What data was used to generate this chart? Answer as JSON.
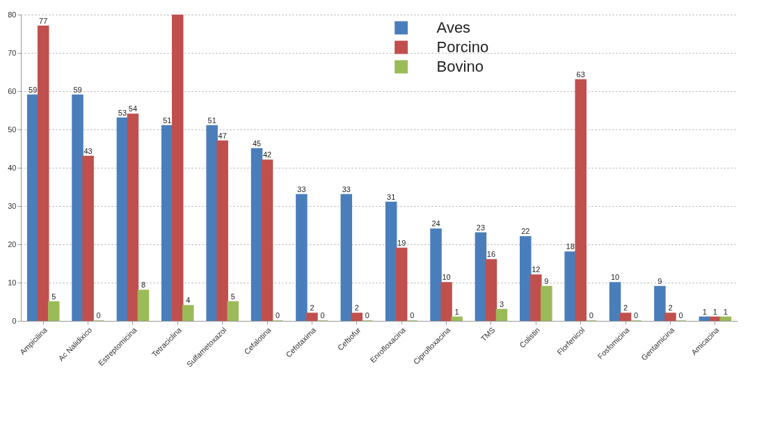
{
  "chart_data": {
    "type": "bar",
    "categories": [
      "Ampicilina",
      "Ac Nalidixico",
      "Estreptomicina",
      "Tetraciclina",
      "Sulfametoxazol",
      "Cefalotina",
      "Cefotaxima",
      "Ceftiofur",
      "Enrofloxacina",
      "Ciprofloxacina",
      "TMS",
      "Colistin",
      "Florfenicol",
      "Fosfomicina",
      "Gentamicina",
      "Amicacina"
    ],
    "series": [
      {
        "name": "Aves",
        "color": "#4a7ebb",
        "values": [
          59,
          59,
          53,
          51,
          51,
          45,
          33,
          33,
          31,
          24,
          23,
          22,
          18,
          10,
          9,
          1
        ],
        "value_labels": [
          "59",
          "59",
          "53",
          "51",
          "51",
          "45",
          "33",
          "33",
          "31",
          "24",
          "23",
          "22",
          "18",
          "10",
          "9",
          "1"
        ]
      },
      {
        "name": "Porcino",
        "color": "#c0504d",
        "values": [
          77,
          43,
          54,
          80,
          47,
          42,
          2,
          2,
          19,
          10,
          16,
          12,
          63,
          2,
          2,
          1
        ],
        "value_labels": [
          "77",
          "43",
          "54",
          null,
          "47",
          "42",
          "2",
          "2",
          "19",
          "10",
          "16",
          "12",
          "63",
          "2",
          "2",
          "1"
        ]
      },
      {
        "name": "Bovino",
        "color": "#9bbb59",
        "values": [
          5,
          0,
          8,
          4,
          5,
          0,
          0,
          0,
          0,
          1,
          3,
          9,
          0,
          0,
          0,
          1
        ],
        "value_labels": [
          "5",
          "0",
          "8",
          "4",
          "5",
          "0",
          "0",
          "0",
          "0",
          "1",
          "3",
          "9",
          "0",
          "0",
          "0",
          "1"
        ]
      }
    ],
    "ylim": [
      0,
      80
    ],
    "yticks": [
      0,
      10,
      20,
      30,
      40,
      50,
      60,
      70,
      80
    ],
    "grid": "y",
    "legend": "top"
  }
}
